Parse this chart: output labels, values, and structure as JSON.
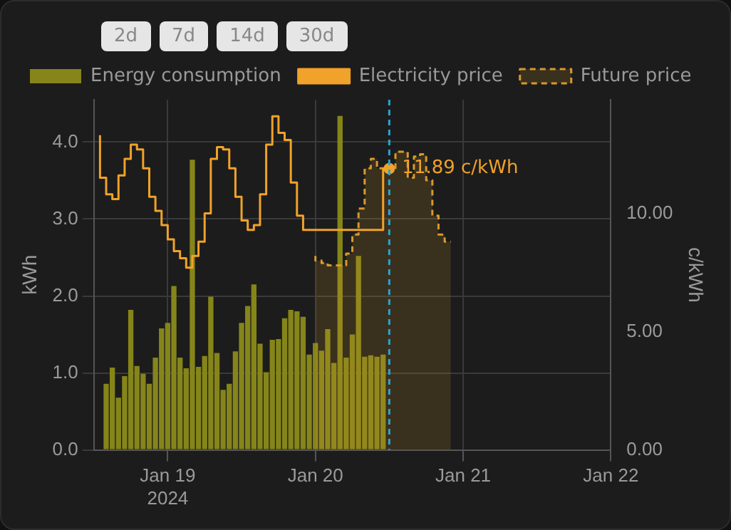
{
  "chart_data": {
    "type": "bar",
    "xlabel": null,
    "ylabel": "kWh",
    "y2label": "c/kWh",
    "xlim": [
      "2024-01-18T12:00",
      "2024-01-22T00:00"
    ],
    "xticks": [
      {
        "value": "2024-01-19",
        "label": "Jan 19\n2024"
      },
      {
        "value": "2024-01-20",
        "label": "Jan 20"
      },
      {
        "value": "2024-01-21",
        "label": "Jan 21"
      },
      {
        "value": "2024-01-22",
        "label": "Jan 22"
      }
    ],
    "ylim": [
      0,
      4.55
    ],
    "yticks": [
      {
        "value": 0,
        "label": "0.0"
      },
      {
        "value": 1,
        "label": "1.0"
      },
      {
        "value": 2,
        "label": "2.0"
      },
      {
        "value": 3,
        "label": "3.0"
      },
      {
        "value": 4,
        "label": "4.0"
      }
    ],
    "y2lim": [
      0,
      14.8
    ],
    "y2ticks": [
      {
        "value": 0,
        "label": "0.00"
      },
      {
        "value": 5,
        "label": "5.00"
      },
      {
        "value": 10,
        "label": "10.00"
      }
    ],
    "grid": true,
    "legend": "top left",
    "series": [
      {
        "name": "Energy consumption",
        "color": "#85851a",
        "x": [
          "2024-01-18T14:00",
          "2024-01-18T15:00",
          "2024-01-18T16:00",
          "2024-01-18T17:00",
          "2024-01-18T18:00",
          "2024-01-18T19:00",
          "2024-01-18T20:00",
          "2024-01-18T21:00",
          "2024-01-18T22:00",
          "2024-01-18T23:00",
          "2024-01-19T00:00",
          "2024-01-19T01:00",
          "2024-01-19T02:00",
          "2024-01-19T03:00",
          "2024-01-19T04:00",
          "2024-01-19T05:00",
          "2024-01-19T06:00",
          "2024-01-19T07:00",
          "2024-01-19T08:00",
          "2024-01-19T09:00",
          "2024-01-19T10:00",
          "2024-01-19T11:00",
          "2024-01-19T12:00",
          "2024-01-19T13:00",
          "2024-01-19T14:00",
          "2024-01-19T15:00",
          "2024-01-19T16:00",
          "2024-01-19T17:00",
          "2024-01-19T18:00",
          "2024-01-19T19:00",
          "2024-01-19T20:00",
          "2024-01-19T21:00",
          "2024-01-19T22:00",
          "2024-01-19T23:00",
          "2024-01-20T00:00",
          "2024-01-20T01:00",
          "2024-01-20T02:00",
          "2024-01-20T03:00",
          "2024-01-20T04:00",
          "2024-01-20T05:00",
          "2024-01-20T06:00",
          "2024-01-20T07:00",
          "2024-01-20T08:00",
          "2024-01-20T09:00",
          "2024-01-20T10:00",
          "2024-01-20T11:00"
        ],
        "values": [
          0.86,
          1.07,
          0.68,
          0.96,
          1.82,
          1.09,
          0.99,
          0.86,
          1.2,
          1.58,
          1.65,
          2.13,
          1.2,
          1.06,
          3.77,
          1.08,
          1.22,
          1.99,
          1.26,
          0.78,
          0.86,
          1.28,
          1.65,
          1.87,
          2.15,
          1.38,
          1.01,
          1.43,
          1.44,
          1.71,
          1.82,
          1.8,
          1.73,
          1.24,
          1.39,
          1.29,
          1.57,
          1.13,
          4.34,
          1.2,
          1.5,
          2.52,
          1.21,
          1.23,
          1.21,
          1.24
        ]
      },
      {
        "name": "Electricity price",
        "type": "step",
        "axis": "y2",
        "color": "#f0a22a",
        "x": [
          "2024-01-18T13:00",
          "2024-01-18T14:00",
          "2024-01-18T15:00",
          "2024-01-18T16:00",
          "2024-01-18T17:00",
          "2024-01-18T18:00",
          "2024-01-18T19:00",
          "2024-01-18T20:00",
          "2024-01-18T21:00",
          "2024-01-18T22:00",
          "2024-01-18T23:00",
          "2024-01-19T00:00",
          "2024-01-19T01:00",
          "2024-01-19T02:00",
          "2024-01-19T03:00",
          "2024-01-19T04:00",
          "2024-01-19T05:00",
          "2024-01-19T06:00",
          "2024-01-19T07:00",
          "2024-01-19T08:00",
          "2024-01-19T09:00",
          "2024-01-19T10:00",
          "2024-01-19T11:00",
          "2024-01-19T12:00",
          "2024-01-19T13:00",
          "2024-01-19T14:00",
          "2024-01-19T15:00",
          "2024-01-19T16:00",
          "2024-01-19T17:00",
          "2024-01-19T18:00",
          "2024-01-19T19:00",
          "2024-01-19T20:00",
          "2024-01-19T21:00",
          "2024-01-19T22:00",
          "2024-01-19T23:00",
          "2024-01-20T00:00",
          "2024-01-20T01:00",
          "2024-01-20T02:00",
          "2024-01-20T03:00",
          "2024-01-20T04:00",
          "2024-01-20T05:00",
          "2024-01-20T06:00",
          "2024-01-20T07:00",
          "2024-01-20T08:00",
          "2024-01-20T09:00",
          "2024-01-20T10:00",
          "2024-01-20T11:00",
          "2024-01-20T12:00"
        ],
        "values": [
          13.3,
          11.5,
          10.8,
          10.6,
          11.6,
          12.3,
          12.9,
          12.7,
          11.9,
          10.7,
          10.1,
          9.5,
          8.9,
          8.4,
          8.1,
          7.7,
          8.2,
          8.8,
          10.0,
          12.3,
          12.8,
          12.7,
          11.9,
          10.7,
          9.7,
          9.3,
          9.5,
          10.8,
          12.9,
          14.1,
          13.4,
          13.1,
          11.3,
          9.9,
          9.3,
          9.3,
          9.3,
          9.3,
          9.3,
          9.3,
          9.3,
          9.3,
          9.3,
          9.3,
          9.3,
          9.3,
          9.3,
          11.89
        ],
        "value_labels": [
          null,
          null,
          null,
          null,
          null,
          null,
          null,
          null,
          null,
          null,
          null,
          null,
          null,
          null,
          null,
          null,
          null,
          null,
          null,
          null,
          null,
          null,
          null,
          null,
          null,
          null,
          null,
          null,
          null,
          null,
          null,
          null,
          null,
          null,
          null,
          null,
          null,
          null,
          null,
          null,
          null,
          null,
          null,
          null,
          null,
          null,
          null,
          "11.89 c/kWh"
        ]
      },
      {
        "name": "Future price",
        "type": "area",
        "axis": "y2",
        "color": "#d8992c",
        "line_style": "dashed",
        "x": [
          "2024-01-20T00:00",
          "2024-01-20T01:00",
          "2024-01-20T02:00",
          "2024-01-20T03:00",
          "2024-01-20T04:00",
          "2024-01-20T05:00",
          "2024-01-20T06:00",
          "2024-01-20T07:00",
          "2024-01-20T08:00",
          "2024-01-20T09:00",
          "2024-01-20T10:00",
          "2024-01-20T11:00",
          "2024-01-20T12:00",
          "2024-01-20T13:00",
          "2024-01-20T14:00",
          "2024-01-20T15:00",
          "2024-01-20T16:00",
          "2024-01-20T17:00",
          "2024-01-20T18:00",
          "2024-01-20T19:00",
          "2024-01-20T20:00",
          "2024-01-20T21:00",
          "2024-01-20T22:00"
        ],
        "values": [
          8.2,
          8.0,
          7.9,
          7.8,
          7.8,
          7.8,
          8.3,
          9.1,
          10.2,
          11.9,
          12.3,
          11.9,
          11.89,
          11.8,
          12.6,
          12.6,
          11.5,
          12.4,
          12.5,
          11.4,
          9.9,
          9.1,
          8.8
        ]
      }
    ],
    "ref_lines": [
      {
        "axis": "x",
        "value": "2024-01-20T12:00",
        "color": "#2ba3d0",
        "line_style": "dashed"
      }
    ],
    "annotations": [
      "2d",
      "7d",
      "14d",
      "30d"
    ]
  }
}
